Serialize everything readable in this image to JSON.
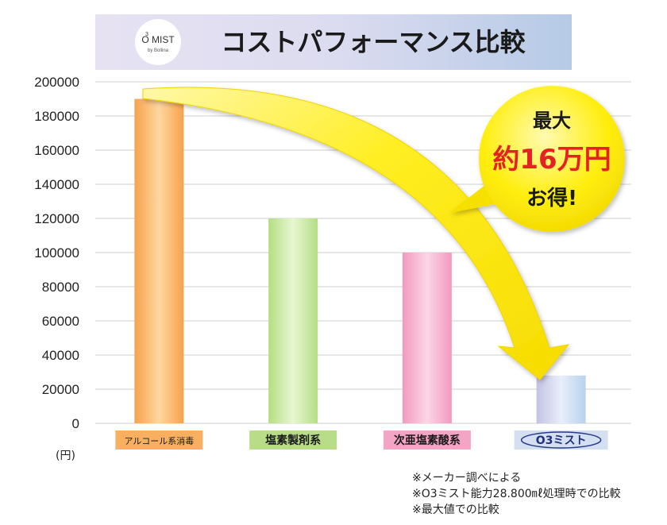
{
  "title": "コストパフォーマンス比較",
  "logo": {
    "name": "O3MIST",
    "text": "O MIST",
    "sup": "3",
    "sub": "by Bollina"
  },
  "callout": {
    "line1": "最大",
    "line2": "約16万円",
    "line3": "お得!"
  },
  "notes": [
    "※メーカー調べによる",
    "※O3ミスト能力28.800㎖処理時での比較",
    "※最大値での比較"
  ],
  "colors": {
    "title_bg_left": "#e4e0f0",
    "title_bg_right": "#b8cce8",
    "arrow": "#ffee00",
    "callout_bg": "#ffee00",
    "callout_highlight": "#e52222"
  },
  "chart_data": {
    "type": "bar",
    "unit_label": "(円)",
    "categories": [
      "アルコール系消毒",
      "塩素製剤系",
      "次亜塩素酸系",
      "O3ミスト"
    ],
    "values": [
      190000,
      120000,
      100000,
      28000
    ],
    "ylim": [
      0,
      200000
    ],
    "yticks": [
      0,
      20000,
      40000,
      60000,
      80000,
      100000,
      120000,
      140000,
      160000,
      180000,
      200000
    ],
    "grid": true,
    "bar_colors": [
      "#f8ae5c",
      "#c2e496",
      "#f4a8c8",
      "#c8d8ee"
    ],
    "label_colors": [
      "#f8b060",
      "#b8dc88",
      "#f4a4c4",
      "#d2dff0"
    ]
  }
}
